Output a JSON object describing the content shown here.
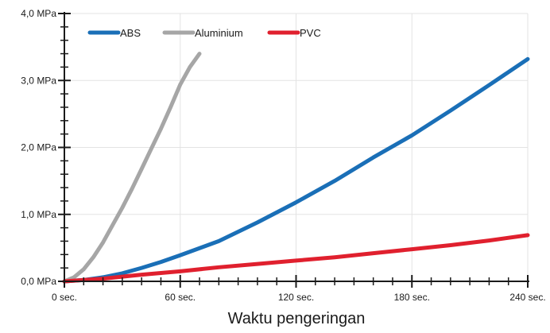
{
  "chart_data": {
    "type": "line",
    "title": "",
    "xlabel": "Waktu pengeringan",
    "ylabel": "",
    "xlim": [
      0,
      240
    ],
    "ylim": [
      0,
      4
    ],
    "x_ticks": [
      {
        "value": 0,
        "label": "0 sec."
      },
      {
        "value": 60,
        "label": "60 sec."
      },
      {
        "value": 120,
        "label": "120 sec."
      },
      {
        "value": 180,
        "label": "180 sec."
      },
      {
        "value": 240,
        "label": "240 sec."
      }
    ],
    "y_ticks": [
      {
        "value": 0,
        "label": "0,0 MPa"
      },
      {
        "value": 1,
        "label": "1,0 MPa"
      },
      {
        "value": 2,
        "label": "2,0 MPa"
      },
      {
        "value": 3,
        "label": "3,0 MPa"
      },
      {
        "value": 4,
        "label": "4,0 MPa"
      }
    ],
    "grid": true,
    "legend_position": "top-left",
    "series": [
      {
        "name": "ABS",
        "color": "#1a6fb7",
        "x": [
          0,
          10,
          20,
          30,
          40,
          50,
          60,
          80,
          100,
          120,
          140,
          160,
          180,
          200,
          220,
          240
        ],
        "y": [
          0,
          0.02,
          0.06,
          0.12,
          0.2,
          0.29,
          0.39,
          0.6,
          0.88,
          1.18,
          1.5,
          1.85,
          2.18,
          2.55,
          2.93,
          3.32
        ]
      },
      {
        "name": "Aluminium",
        "color": "#a6a6a6",
        "x": [
          0,
          5,
          10,
          15,
          20,
          25,
          30,
          35,
          40,
          45,
          50,
          55,
          60,
          65,
          70
        ],
        "y": [
          0,
          0.06,
          0.18,
          0.36,
          0.58,
          0.84,
          1.1,
          1.38,
          1.68,
          1.98,
          2.28,
          2.6,
          2.94,
          3.2,
          3.4
        ]
      },
      {
        "name": "PVC",
        "color": "#e0202e",
        "x": [
          0,
          20,
          40,
          60,
          80,
          100,
          120,
          140,
          160,
          180,
          200,
          220,
          240
        ],
        "y": [
          0,
          0.04,
          0.1,
          0.15,
          0.21,
          0.26,
          0.31,
          0.36,
          0.42,
          0.48,
          0.54,
          0.61,
          0.69
        ]
      }
    ]
  }
}
